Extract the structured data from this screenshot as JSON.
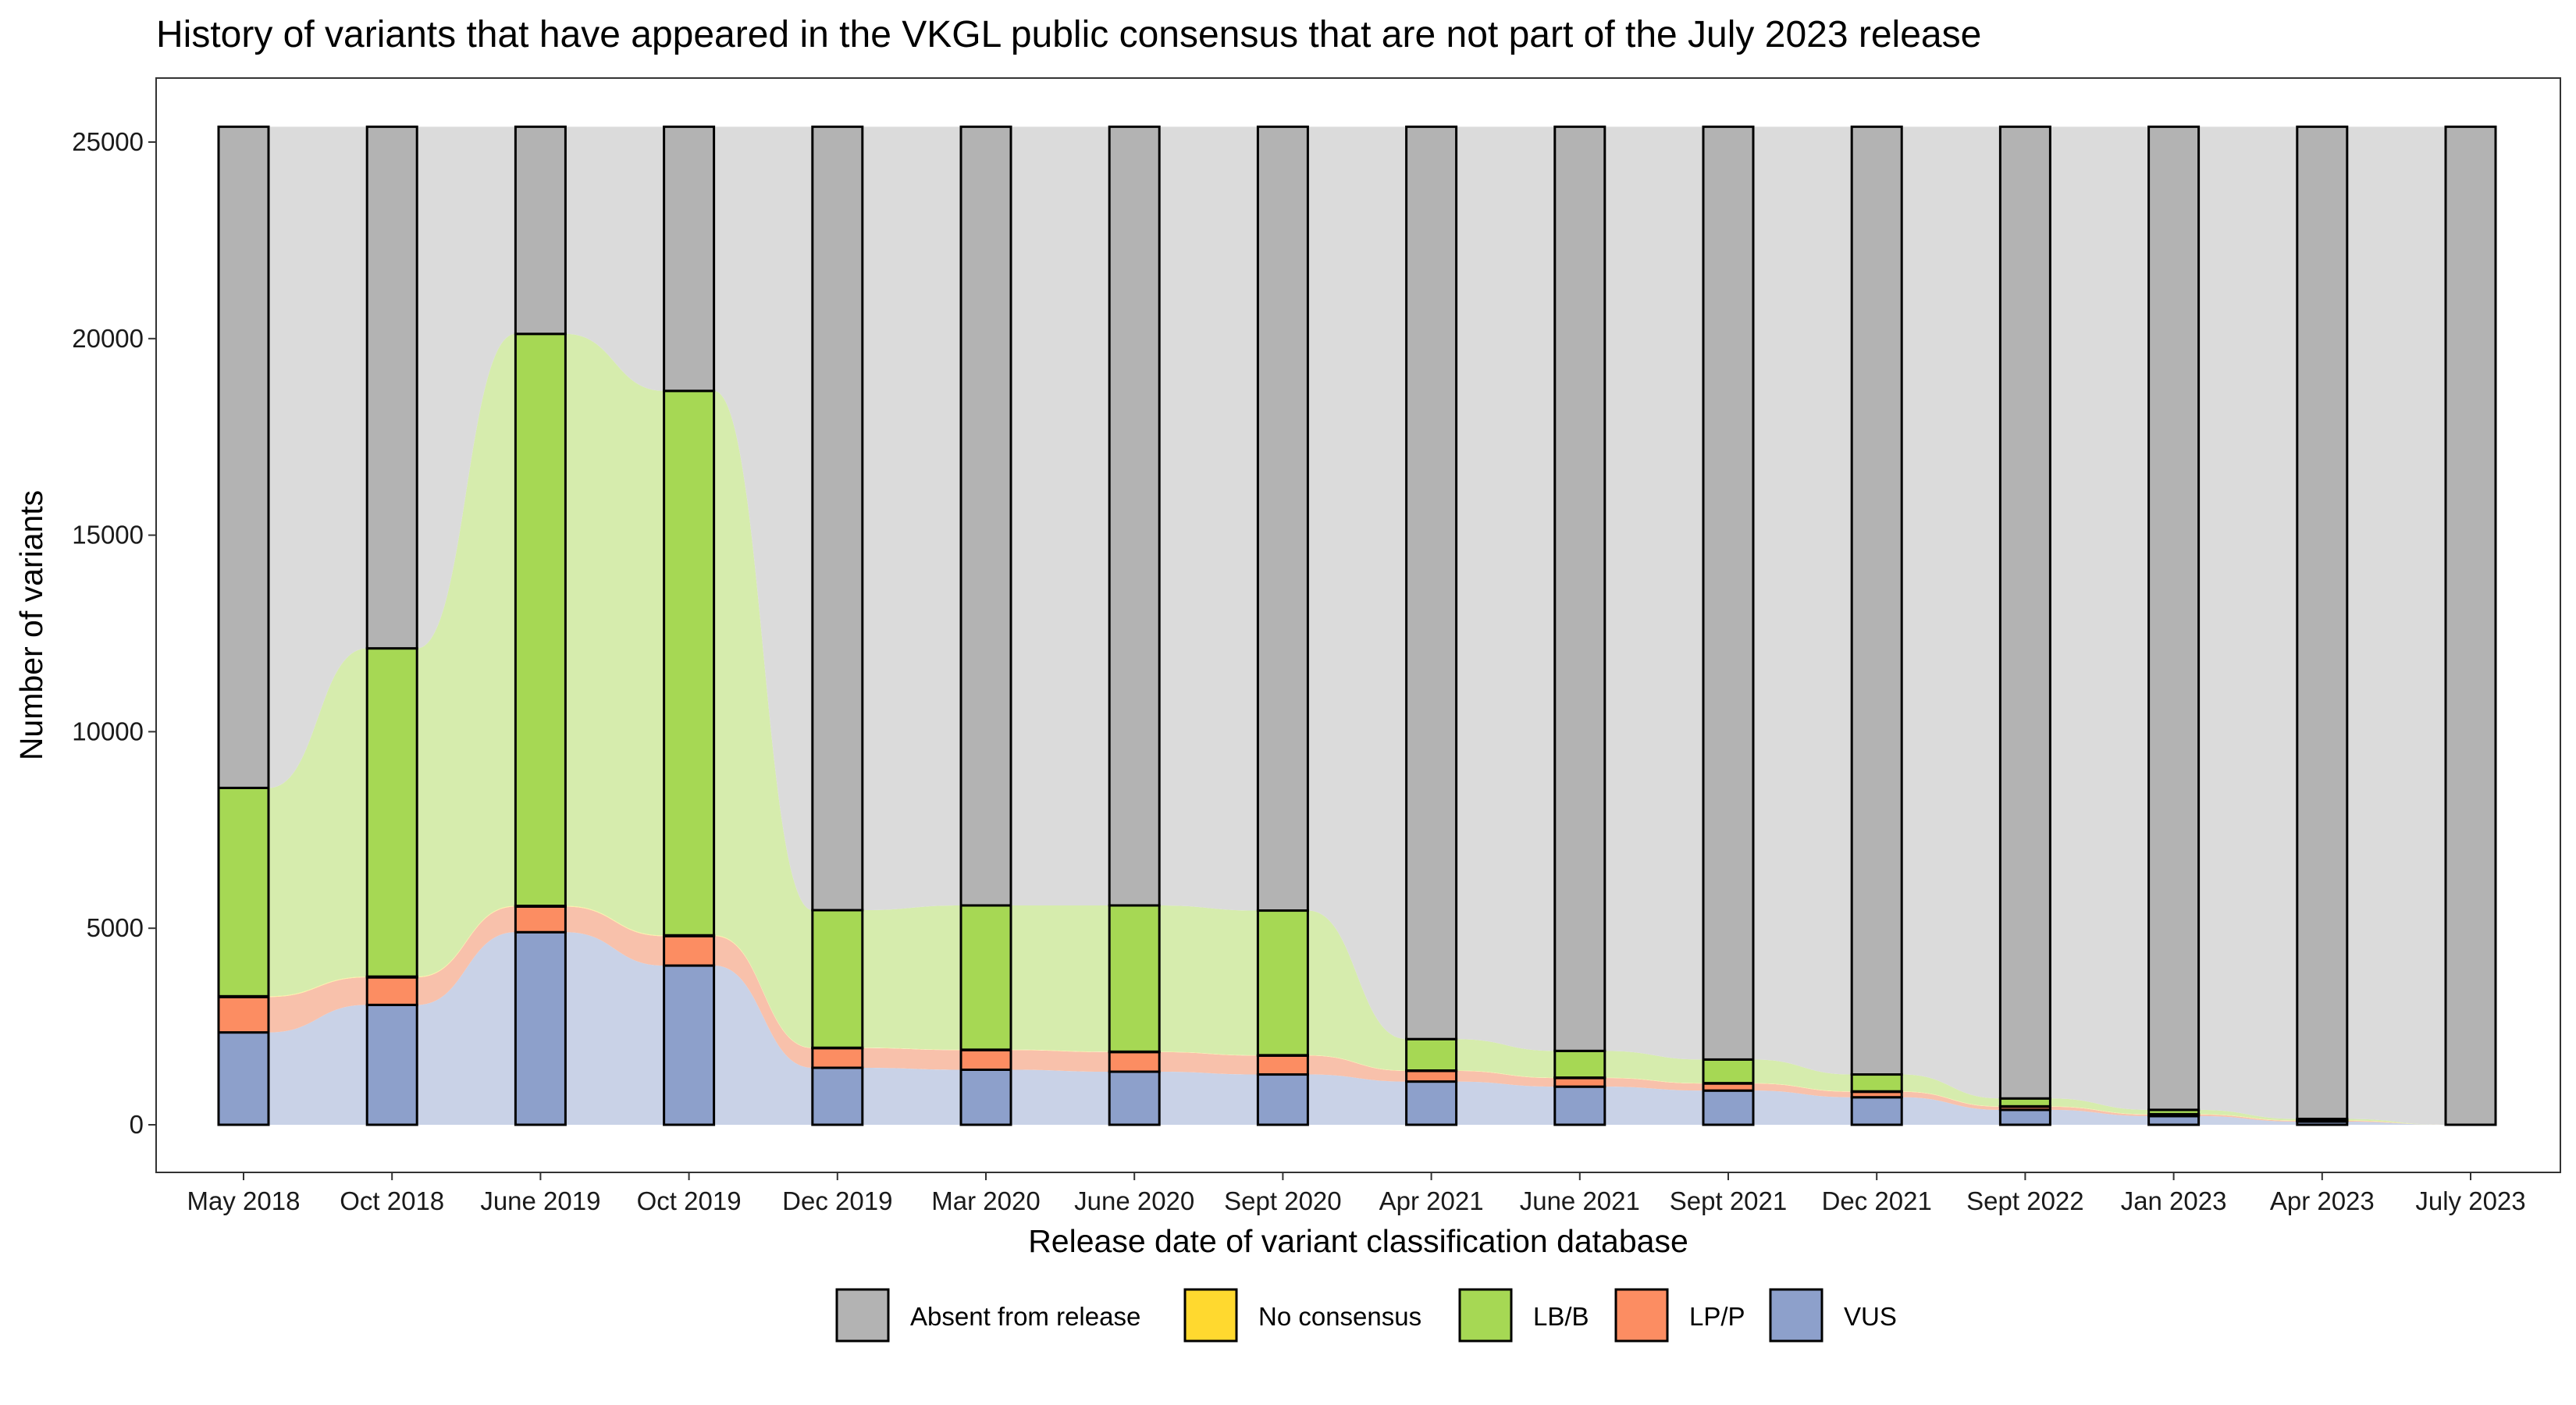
{
  "chart_data": {
    "type": "bar",
    "title": "History of variants that have appeared in the VKGL public consensus that are not part of the July 2023 release",
    "xlabel": "Release date of variant classification database",
    "ylabel": "Number of variants",
    "ylim": [
      0,
      25000
    ],
    "yticks": [
      "0",
      "5000",
      "10000",
      "15000",
      "20000",
      "25000"
    ],
    "grid": false,
    "legend_position": "bottom",
    "categories": [
      "May 2018",
      "Oct 2018",
      "June 2019",
      "Oct 2019",
      "Dec 2019",
      "Mar 2020",
      "June 2020",
      "Sept 2020",
      "Apr 2021",
      "June 2021",
      "Sept 2021",
      "Dec 2021",
      "Sept 2022",
      "Jan 2023",
      "Apr 2023",
      "July 2023"
    ],
    "series": [
      {
        "name": "VUS",
        "color": "#8DA0CB",
        "values": [
          2350,
          3050,
          4900,
          4050,
          1450,
          1400,
          1350,
          1280,
          1100,
          970,
          870,
          700,
          380,
          220,
          80,
          0
        ]
      },
      {
        "name": "LP/P",
        "color": "#FC8D62",
        "values": [
          900,
          700,
          650,
          750,
          500,
          500,
          500,
          480,
          270,
          220,
          180,
          140,
          80,
          40,
          20,
          0
        ]
      },
      {
        "name": "LB/B",
        "color": "#A6D854",
        "values": [
          5300,
          8350,
          14550,
          13850,
          3500,
          3670,
          3720,
          3680,
          800,
          680,
          600,
          430,
          200,
          110,
          40,
          0
        ]
      },
      {
        "name": "No consensus",
        "color": "#FFD92F",
        "values": [
          20,
          20,
          20,
          20,
          10,
          10,
          10,
          10,
          10,
          10,
          10,
          10,
          10,
          10,
          10,
          0
        ]
      },
      {
        "name": "Absent from release",
        "color": "#B3B3B3",
        "values": [
          16820,
          13270,
          5270,
          6720,
          19930,
          19810,
          19810,
          19940,
          23210,
          23510,
          23730,
          24110,
          24720,
          25010,
          25240,
          25390
        ]
      }
    ],
    "total": 25390,
    "legend": [
      "Absent from release",
      "No consensus",
      "LB/B",
      "LP/P",
      "VUS"
    ]
  }
}
